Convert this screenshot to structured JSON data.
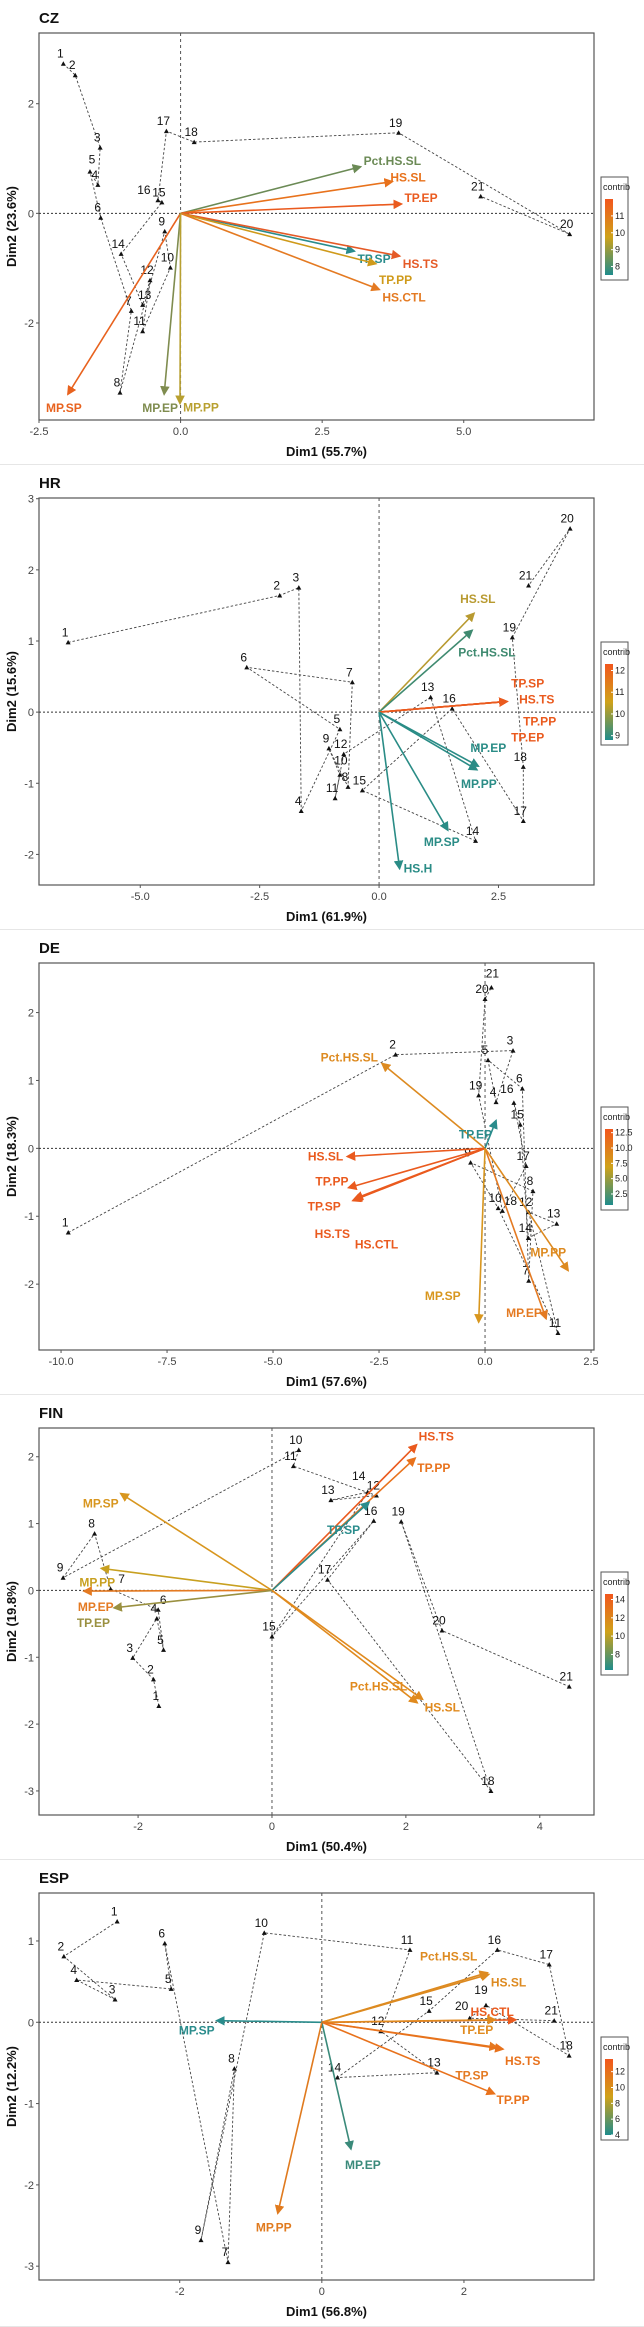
{
  "legend_title": "contrib",
  "chart_data": [
    {
      "type": "scatter",
      "title": "CZ",
      "xlabel": "Dim1 (55.7%)",
      "ylabel": "Dim2 (23.6%)",
      "xlim": [
        -2.5,
        7.3
      ],
      "ylim": [
        -3.77,
        3.29
      ],
      "xticks": [
        "-2.5",
        "0.0",
        "2.5",
        "5.0"
      ],
      "yticks": [
        "-2",
        "0",
        "2"
      ],
      "legend": {
        "range": [
          7.5,
          12.0
        ],
        "ticks": [
          "11",
          "10",
          "9",
          "8"
        ]
      },
      "points": [
        {
          "label": "1",
          "x": -2.07,
          "y": 2.73
        },
        {
          "label": "2",
          "x": -1.86,
          "y": 2.52
        },
        {
          "label": "3",
          "x": -1.42,
          "y": 1.2
        },
        {
          "label": "4",
          "x": -1.46,
          "y": 0.52
        },
        {
          "label": "5",
          "x": -1.6,
          "y": 0.76
        },
        {
          "label": "6",
          "x": -1.41,
          "y": -0.08
        },
        {
          "label": "7",
          "x": -0.87,
          "y": -1.78
        },
        {
          "label": "8",
          "x": -1.07,
          "y": -3.27
        },
        {
          "label": "9",
          "x": -0.28,
          "y": -0.33
        },
        {
          "label": "10",
          "x": -0.18,
          "y": -0.99
        },
        {
          "label": "11",
          "x": -0.67,
          "y": -2.15
        },
        {
          "label": "12",
          "x": -0.54,
          "y": -1.22
        },
        {
          "label": "13",
          "x": -0.67,
          "y": -1.67
        },
        {
          "label": "14",
          "x": -1.05,
          "y": -0.74
        },
        {
          "label": "15",
          "x": -0.33,
          "y": 0.2
        },
        {
          "label": "16",
          "x": -0.4,
          "y": 0.24
        },
        {
          "label": "17",
          "x": -0.25,
          "y": 1.5
        },
        {
          "label": "18",
          "x": 0.24,
          "y": 1.3
        },
        {
          "label": "19",
          "x": 3.85,
          "y": 1.47
        },
        {
          "label": "20",
          "x": 6.87,
          "y": -0.38
        },
        {
          "label": "21",
          "x": 5.3,
          "y": 0.31
        }
      ],
      "variables": [
        {
          "label": "Pct.HS.SL",
          "x": 3.18,
          "y": 0.85,
          "color": "#6b8a55"
        },
        {
          "label": "HS.SL",
          "x": 3.74,
          "y": 0.58,
          "color": "#e8721c"
        },
        {
          "label": "TP.EP",
          "x": 3.9,
          "y": 0.17,
          "color": "#ea5a1e"
        },
        {
          "label": "TP.SP",
          "x": 3.07,
          "y": -0.69,
          "color": "#2a8c8c"
        },
        {
          "label": "HS.TS",
          "x": 3.87,
          "y": -0.78,
          "color": "#e55a26"
        },
        {
          "label": "TP.PP",
          "x": 3.45,
          "y": -0.92,
          "color": "#cf9a1a"
        },
        {
          "label": "HS.CTL",
          "x": 3.51,
          "y": -1.39,
          "color": "#e47a22"
        },
        {
          "label": "MP.SP",
          "x": -1.99,
          "y": -3.3,
          "color": "#e8621e"
        },
        {
          "label": "MP.EP",
          "x": -0.29,
          "y": -3.3,
          "color": "#7f8c4f"
        },
        {
          "label": "MP.PP",
          "x": -0.01,
          "y": -3.47,
          "color": "#b8a030"
        }
      ]
    },
    {
      "type": "scatter",
      "title": "HR",
      "xlabel": "Dim1 (61.9%)",
      "ylabel": "Dim2 (15.6%)",
      "xlim": [
        -7.12,
        4.5
      ],
      "ylim": [
        -2.43,
        3.01
      ],
      "xticks": [
        "-5.0",
        "-2.5",
        "0.0",
        "2.5"
      ],
      "yticks": [
        "-2",
        "-1",
        "0",
        "1",
        "2",
        "3"
      ],
      "legend": {
        "range": [
          8.8,
          12.3
        ],
        "ticks": [
          "12",
          "11",
          "10",
          "9"
        ]
      },
      "points": [
        {
          "label": "1",
          "x": -6.51,
          "y": 0.98
        },
        {
          "label": "2",
          "x": -2.08,
          "y": 1.64
        },
        {
          "label": "3",
          "x": -1.68,
          "y": 1.75
        },
        {
          "label": "4",
          "x": -1.63,
          "y": -1.39
        },
        {
          "label": "5",
          "x": -0.82,
          "y": -0.24
        },
        {
          "label": "6",
          "x": -2.77,
          "y": 0.63
        },
        {
          "label": "7",
          "x": -0.56,
          "y": 0.42
        },
        {
          "label": "8",
          "x": -0.65,
          "y": -1.05
        },
        {
          "label": "9",
          "x": -1.05,
          "y": -0.51
        },
        {
          "label": "10",
          "x": -0.82,
          "y": -0.88
        },
        {
          "label": "11",
          "x": -0.92,
          "y": -1.21
        },
        {
          "label": "12",
          "x": -0.74,
          "y": -0.59
        },
        {
          "label": "13",
          "x": 1.08,
          "y": 0.21
        },
        {
          "label": "14",
          "x": 2.02,
          "y": -1.81
        },
        {
          "label": "15",
          "x": -0.35,
          "y": -1.1
        },
        {
          "label": "16",
          "x": 1.53,
          "y": 0.05
        },
        {
          "label": "17",
          "x": 3.02,
          "y": -1.53
        },
        {
          "label": "18",
          "x": 3.02,
          "y": -0.77
        },
        {
          "label": "19",
          "x": 2.79,
          "y": 1.05
        },
        {
          "label": "20",
          "x": 4.0,
          "y": 2.58
        },
        {
          "label": "21",
          "x": 3.13,
          "y": 1.78
        }
      ],
      "variables": [
        {
          "label": "HS.SL",
          "x": 1.99,
          "y": 1.39,
          "color": "#b89a30"
        },
        {
          "label": "Pct.HS.SL",
          "x": 1.95,
          "y": 1.15,
          "color": "#3f8a70"
        },
        {
          "label": "TP.SP",
          "x": 2.68,
          "y": 0.15,
          "color": "#ea5a1e"
        },
        {
          "label": "HS.TS",
          "x": 2.68,
          "y": 0.15,
          "color": "#ea5a1e"
        },
        {
          "label": "TP.PP",
          "x": 2.68,
          "y": 0.15,
          "color": "#ea5a1e"
        },
        {
          "label": "TP.EP",
          "x": 2.68,
          "y": 0.15,
          "color": "#ea5a1e"
        },
        {
          "label": "MP.EP",
          "x": 2.08,
          "y": -0.76,
          "color": "#2a8c86"
        },
        {
          "label": "MP.PP",
          "x": 2.05,
          "y": -0.81,
          "color": "#2a8c86"
        },
        {
          "label": "MP.SP",
          "x": 1.44,
          "y": -1.66,
          "color": "#2a8c86"
        },
        {
          "label": "HS.H",
          "x": 0.43,
          "y": -2.2,
          "color": "#2a8c86"
        }
      ]
    },
    {
      "type": "scatter",
      "title": "DE",
      "xlabel": "Dim1 (57.6%)",
      "ylabel": "Dim2 (18.3%)",
      "xlim": [
        -10.52,
        2.57
      ],
      "ylim": [
        -2.97,
        2.73
      ],
      "xticks": [
        "-10.0",
        "-7.5",
        "-5.0",
        "-2.5",
        "0.0",
        "2.5"
      ],
      "yticks": [
        "-2",
        "-1",
        "0",
        "1",
        "2"
      ],
      "legend": {
        "range": [
          0.7,
          13.1
        ],
        "ticks": [
          "12.5",
          "10.0",
          "7.5",
          "5.0",
          "2.5"
        ]
      },
      "points": [
        {
          "label": "1",
          "x": -9.83,
          "y": -1.24
        },
        {
          "label": "2",
          "x": -2.11,
          "y": 1.38
        },
        {
          "label": "3",
          "x": 0.66,
          "y": 1.44
        },
        {
          "label": "4",
          "x": 0.26,
          "y": 0.68
        },
        {
          "label": "5",
          "x": 0.07,
          "y": 1.3
        },
        {
          "label": "6",
          "x": 0.88,
          "y": 0.88
        },
        {
          "label": "7",
          "x": 1.03,
          "y": -1.95
        },
        {
          "label": "8",
          "x": 1.13,
          "y": -0.63
        },
        {
          "label": "9",
          "x": -0.34,
          "y": -0.21
        },
        {
          "label": "10",
          "x": 0.31,
          "y": -0.88
        },
        {
          "label": "11",
          "x": 1.72,
          "y": -2.72
        },
        {
          "label": "12",
          "x": 1.03,
          "y": -0.94
        },
        {
          "label": "13",
          "x": 1.69,
          "y": -1.11
        },
        {
          "label": "14",
          "x": 1.02,
          "y": -1.32
        },
        {
          "label": "15",
          "x": 0.83,
          "y": 0.35
        },
        {
          "label": "16",
          "x": 0.68,
          "y": 0.67
        },
        {
          "label": "17",
          "x": 0.97,
          "y": -0.26
        },
        {
          "label": "18",
          "x": 0.41,
          "y": -0.92
        },
        {
          "label": "19",
          "x": -0.15,
          "y": 0.78
        },
        {
          "label": "20",
          "x": 0.0,
          "y": 2.2
        },
        {
          "label": "21",
          "x": 0.15,
          "y": 2.37
        }
      ],
      "variables": [
        {
          "label": "Pct.HS.SL",
          "x": -2.43,
          "y": 1.25,
          "color": "#dd8a20"
        },
        {
          "label": "HS.SL",
          "x": -3.25,
          "y": -0.12,
          "color": "#ea5a1e"
        },
        {
          "label": "TP.PP",
          "x": -3.22,
          "y": -0.58,
          "color": "#ea5a1e"
        },
        {
          "label": "TP.SP",
          "x": -3.12,
          "y": -0.77,
          "color": "#ea5a1e"
        },
        {
          "label": "HS.TS",
          "x": -3.09,
          "y": -0.76,
          "color": "#ea5a1e"
        },
        {
          "label": "HS.CTL",
          "x": -3.07,
          "y": -0.74,
          "color": "#ea5a1e"
        },
        {
          "label": "TP.EP",
          "x": 0.26,
          "y": 0.41,
          "color": "#2a8c8c"
        },
        {
          "label": "MP.PP",
          "x": 1.96,
          "y": -1.8,
          "color": "#dd8a20"
        },
        {
          "label": "MP.EP",
          "x": 1.44,
          "y": -2.51,
          "color": "#e47a22"
        },
        {
          "label": "MP.SP",
          "x": -0.15,
          "y": -2.56,
          "color": "#d8961e"
        }
      ]
    },
    {
      "type": "scatter",
      "title": "FIN",
      "xlabel": "Dim1 (50.4%)",
      "ylabel": "Dim2 (19.8%)",
      "xlim": [
        -3.48,
        4.81
      ],
      "ylim": [
        -3.36,
        2.43
      ],
      "xticks": [
        "-2",
        "0",
        "2",
        "4"
      ],
      "yticks": [
        "-3",
        "-2",
        "-1",
        "0",
        "1",
        "2"
      ],
      "legend": {
        "range": [
          6.3,
          14.6
        ],
        "ticks": [
          "14",
          "12",
          "10",
          "8"
        ]
      },
      "points": [
        {
          "label": "1",
          "x": -1.69,
          "y": -1.73
        },
        {
          "label": "2",
          "x": -1.77,
          "y": -1.33
        },
        {
          "label": "3",
          "x": -2.08,
          "y": -1.01
        },
        {
          "label": "4",
          "x": -1.72,
          "y": -0.42
        },
        {
          "label": "5",
          "x": -1.62,
          "y": -0.89
        },
        {
          "label": "6",
          "x": -1.7,
          "y": -0.29
        },
        {
          "label": "7",
          "x": -2.41,
          "y": 0.02
        },
        {
          "label": "8",
          "x": -2.65,
          "y": 0.85
        },
        {
          "label": "9",
          "x": -3.12,
          "y": 0.19
        },
        {
          "label": "10",
          "x": 0.4,
          "y": 2.1
        },
        {
          "label": "11",
          "x": 0.32,
          "y": 1.86
        },
        {
          "label": "12",
          "x": 1.56,
          "y": 1.42
        },
        {
          "label": "13",
          "x": 0.88,
          "y": 1.35
        },
        {
          "label": "14",
          "x": 1.43,
          "y": 1.47
        },
        {
          "label": "15",
          "x": 0.0,
          "y": -0.69
        },
        {
          "label": "16",
          "x": 1.52,
          "y": 1.04
        },
        {
          "label": "17",
          "x": 0.83,
          "y": 0.16
        },
        {
          "label": "18",
          "x": 3.27,
          "y": -3.0
        },
        {
          "label": "19",
          "x": 1.93,
          "y": 1.03
        },
        {
          "label": "20",
          "x": 2.54,
          "y": -0.6
        },
        {
          "label": "21",
          "x": 4.44,
          "y": -1.44
        }
      ],
      "variables": [
        {
          "label": "HS.TS",
          "x": 2.16,
          "y": 2.18,
          "color": "#ea5a1e"
        },
        {
          "label": "TP.PP",
          "x": 2.14,
          "y": 1.98,
          "color": "#e8721c"
        },
        {
          "label": "TP.SP",
          "x": 1.45,
          "y": 1.32,
          "color": "#2a8c8c"
        },
        {
          "label": "HS.SL",
          "x": 2.25,
          "y": -1.63,
          "color": "#e08a1e"
        },
        {
          "label": "Pct.HS.SL",
          "x": 2.17,
          "y": -1.68,
          "color": "#e08a1e"
        },
        {
          "label": "MP.SP",
          "x": -2.26,
          "y": 1.45,
          "color": "#d8961e"
        },
        {
          "label": "MP.PP",
          "x": -2.55,
          "y": 0.33,
          "color": "#c8a020"
        },
        {
          "label": "MP.EP",
          "x": -2.81,
          "y": -0.01,
          "color": "#e47a22"
        },
        {
          "label": "TP.EP",
          "x": -2.36,
          "y": -0.26,
          "color": "#9a9040"
        }
      ]
    },
    {
      "type": "scatter",
      "title": "ESP",
      "xlabel": "Dim1 (56.8%)",
      "ylabel": "Dim2 (12.2%)",
      "xlim": [
        -3.98,
        3.83
      ],
      "ylim": [
        -3.17,
        1.59
      ],
      "xticks": [
        "-2",
        "0",
        "2"
      ],
      "yticks": [
        "-3",
        "-2",
        "-1",
        "0",
        "1"
      ],
      "legend": {
        "range": [
          4.0,
          13.6
        ],
        "ticks": [
          "12",
          "10",
          "8",
          "6",
          "4"
        ]
      },
      "points": [
        {
          "label": "1",
          "x": -2.88,
          "y": 1.24
        },
        {
          "label": "2",
          "x": -3.63,
          "y": 0.81
        },
        {
          "label": "3",
          "x": -2.91,
          "y": 0.28
        },
        {
          "label": "4",
          "x": -3.45,
          "y": 0.52
        },
        {
          "label": "5",
          "x": -2.12,
          "y": 0.41
        },
        {
          "label": "6",
          "x": -2.21,
          "y": 0.97
        },
        {
          "label": "7",
          "x": -1.32,
          "y": -2.95
        },
        {
          "label": "8",
          "x": -1.23,
          "y": -0.57
        },
        {
          "label": "9",
          "x": -1.7,
          "y": -2.68
        },
        {
          "label": "10",
          "x": -0.81,
          "y": 1.1
        },
        {
          "label": "11",
          "x": 1.24,
          "y": 0.89
        },
        {
          "label": "12",
          "x": 0.83,
          "y": -0.11
        },
        {
          "label": "13",
          "x": 1.62,
          "y": -0.62
        },
        {
          "label": "14",
          "x": 0.22,
          "y": -0.68
        },
        {
          "label": "15",
          "x": 1.51,
          "y": 0.14
        },
        {
          "label": "16",
          "x": 2.47,
          "y": 0.89
        },
        {
          "label": "17",
          "x": 3.2,
          "y": 0.71
        },
        {
          "label": "18",
          "x": 3.48,
          "y": -0.41
        },
        {
          "label": "19",
          "x": 2.31,
          "y": 0.21
        },
        {
          "label": "20",
          "x": 2.08,
          "y": 0.05
        },
        {
          "label": "21",
          "x": 3.27,
          "y": 0.02
        }
      ],
      "variables": [
        {
          "label": "Pct.HS.SL",
          "x": 2.33,
          "y": 0.61,
          "color": "#dd8a20"
        },
        {
          "label": "HS.SL",
          "x": 2.35,
          "y": 0.59,
          "color": "#dd8a20"
        },
        {
          "label": "HS.CTL",
          "x": 2.73,
          "y": 0.03,
          "color": "#ea5a1e"
        },
        {
          "label": "TP.EP",
          "x": 2.44,
          "y": 0.03,
          "color": "#e08a1e"
        },
        {
          "label": "TP.SP",
          "x": 2.47,
          "y": -0.31,
          "color": "#e47a22"
        },
        {
          "label": "HS.TS",
          "x": 2.55,
          "y": -0.33,
          "color": "#e8721c"
        },
        {
          "label": "TP.PP",
          "x": 2.43,
          "y": -0.88,
          "color": "#e8721c"
        },
        {
          "label": "MP.SP",
          "x": -1.48,
          "y": 0.02,
          "color": "#2a8c8c"
        },
        {
          "label": "MP.EP",
          "x": 0.41,
          "y": -1.56,
          "color": "#3a8a7a"
        },
        {
          "label": "MP.PP",
          "x": -0.62,
          "y": -2.35,
          "color": "#e07a1e"
        }
      ]
    }
  ]
}
